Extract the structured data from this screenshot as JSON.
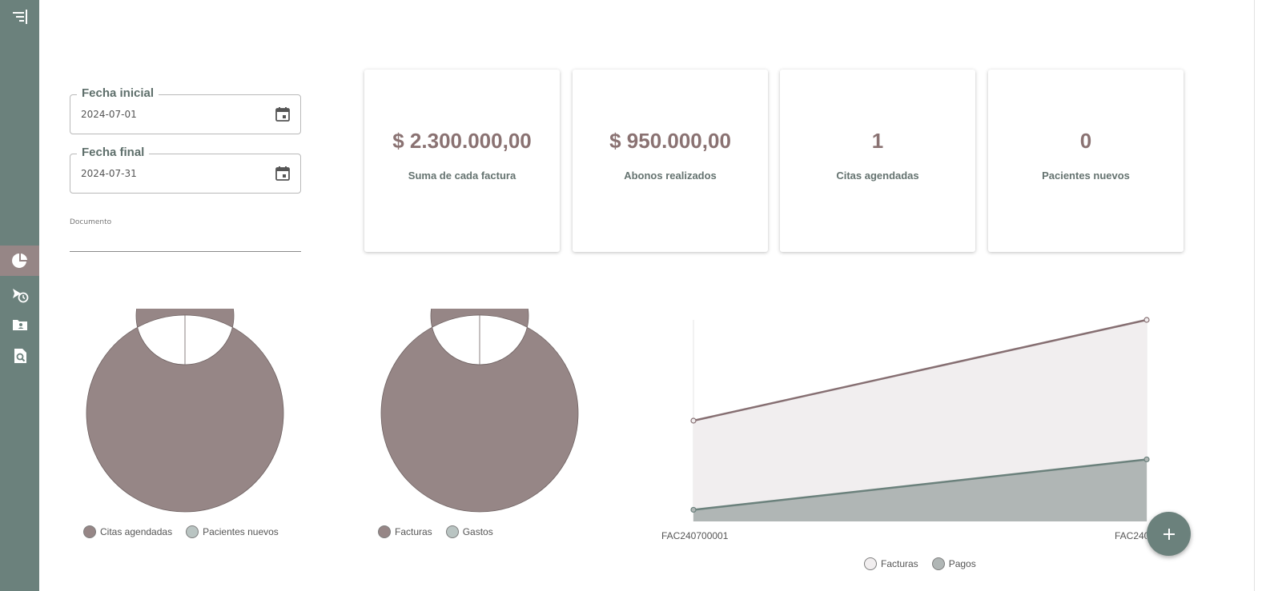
{
  "filters": {
    "start_date": {
      "label": "Fecha inicial",
      "value": "2024-07-01"
    },
    "end_date": {
      "label": "Fecha final",
      "value": "2024-07-31"
    },
    "document": {
      "label": "Documento",
      "value": ""
    }
  },
  "stats": [
    {
      "value": "$ 2.300.000,00",
      "label": "Suma de cada factura"
    },
    {
      "value": "$ 950.000,00",
      "label": "Abonos realizados"
    },
    {
      "value": "1",
      "label": "Citas agendadas"
    },
    {
      "value": "0",
      "label": "Pacientes nuevos"
    }
  ],
  "sidebar": {
    "items": [
      {
        "icon": "menu-collapse-icon"
      },
      {
        "icon": "pie-chart-icon",
        "active": true
      },
      {
        "icon": "flight-schedule-icon"
      },
      {
        "icon": "contact-folder-icon"
      },
      {
        "icon": "document-search-icon"
      }
    ]
  },
  "colors": {
    "sidebar": "#6b817c",
    "accent": "#968686",
    "value_text": "#8a7272",
    "label_text": "#657370",
    "facturas_fill": "#f1eeef",
    "pagos_fill": "#b0b6b5"
  },
  "chart_data": [
    {
      "type": "pie",
      "labels": [
        "Citas agendadas",
        "Pacientes nuevos"
      ],
      "values": [
        1,
        0
      ],
      "colors": [
        "#968686",
        "#b9c4c2"
      ],
      "legend": "bottom"
    },
    {
      "type": "pie",
      "labels": [
        "Facturas",
        "Gastos"
      ],
      "values": [
        1,
        0
      ],
      "colors": [
        "#968686",
        "#b9c4c2"
      ],
      "legend": "bottom"
    },
    {
      "type": "area",
      "categories": [
        "FAC240700001",
        "FAC24070"
      ],
      "series": [
        {
          "name": "Facturas",
          "values": [
            650000,
            1300000
          ],
          "fill": "#f1eeef",
          "stroke": "#866f72"
        },
        {
          "name": "Pagos",
          "values": [
            75000,
            400000
          ],
          "fill": "#b0b6b5",
          "stroke": "#6b817c"
        }
      ],
      "ylim": [
        0,
        1300000
      ],
      "legend": "bottom"
    }
  ]
}
